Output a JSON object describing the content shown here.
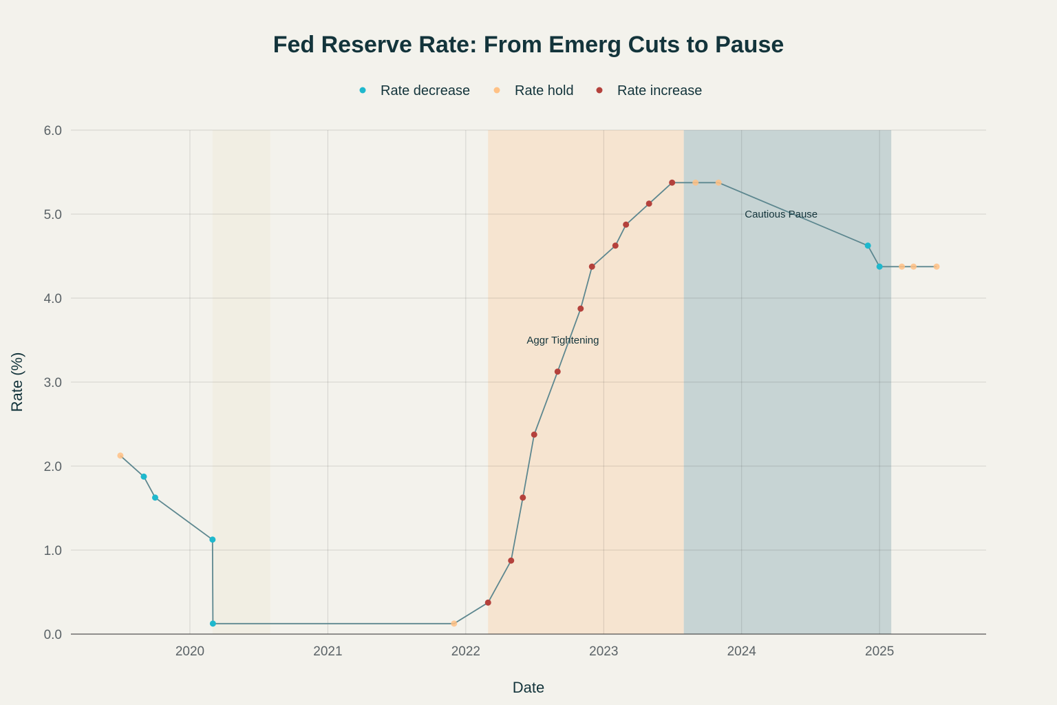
{
  "chart_data": {
    "type": "line",
    "title": "Fed Reserve Rate: From Emerg Cuts to Pause",
    "xlabel": "Date",
    "ylabel": "Rate (%)",
    "xlim": [
      "2019-02-20",
      "2025-10-10"
    ],
    "ylim": [
      0,
      6
    ],
    "x_ticks": [
      "2020",
      "2021",
      "2022",
      "2023",
      "2024",
      "2025"
    ],
    "y_ticks": [
      "0.0",
      "1.0",
      "2.0",
      "3.0",
      "4.0",
      "5.0",
      "6.0"
    ],
    "grid": true,
    "legend_position": "top-center",
    "legend": [
      {
        "name": "Rate decrease",
        "color": "#1FB8CD"
      },
      {
        "name": "Rate hold",
        "color": "#FFC185"
      },
      {
        "name": "Rate increase",
        "color": "#B4413C"
      }
    ],
    "line_color": "#5D878F",
    "points": [
      {
        "date": "2019-07-01",
        "rate": 2.125,
        "type": "Rate hold"
      },
      {
        "date": "2019-09-01",
        "rate": 1.875,
        "type": "Rate decrease"
      },
      {
        "date": "2019-10-01",
        "rate": 1.625,
        "type": "Rate decrease"
      },
      {
        "date": "2020-03-01",
        "rate": 1.125,
        "type": "Rate decrease"
      },
      {
        "date": "2020-03-02",
        "rate": 0.125,
        "type": "Rate decrease"
      },
      {
        "date": "2021-12-01",
        "rate": 0.125,
        "type": "Rate hold"
      },
      {
        "date": "2022-03-01",
        "rate": 0.375,
        "type": "Rate increase"
      },
      {
        "date": "2022-05-01",
        "rate": 0.875,
        "type": "Rate increase"
      },
      {
        "date": "2022-06-01",
        "rate": 1.625,
        "type": "Rate increase"
      },
      {
        "date": "2022-07-01",
        "rate": 2.375,
        "type": "Rate increase"
      },
      {
        "date": "2022-09-01",
        "rate": 3.125,
        "type": "Rate increase"
      },
      {
        "date": "2022-11-01",
        "rate": 3.875,
        "type": "Rate increase"
      },
      {
        "date": "2022-12-01",
        "rate": 4.375,
        "type": "Rate increase"
      },
      {
        "date": "2023-02-01",
        "rate": 4.625,
        "type": "Rate increase"
      },
      {
        "date": "2023-03-01",
        "rate": 4.875,
        "type": "Rate increase"
      },
      {
        "date": "2023-05-01",
        "rate": 5.125,
        "type": "Rate increase"
      },
      {
        "date": "2023-07-01",
        "rate": 5.375,
        "type": "Rate increase"
      },
      {
        "date": "2023-09-01",
        "rate": 5.375,
        "type": "Rate hold"
      },
      {
        "date": "2023-11-01",
        "rate": 5.375,
        "type": "Rate hold"
      },
      {
        "date": "2024-12-01",
        "rate": 4.625,
        "type": "Rate decrease"
      },
      {
        "date": "2025-01-01",
        "rate": 4.375,
        "type": "Rate decrease"
      },
      {
        "date": "2025-03-01",
        "rate": 4.375,
        "type": "Rate hold"
      },
      {
        "date": "2025-04-01",
        "rate": 4.375,
        "type": "Rate hold"
      },
      {
        "date": "2025-06-01",
        "rate": 4.375,
        "type": "Rate hold"
      }
    ],
    "regions": [
      {
        "start": "2020-03-01",
        "end": "2020-08-01",
        "color": "#F1EEE3"
      },
      {
        "start": "2022-03-01",
        "end": "2023-08-01",
        "color": "#F6E4D0"
      },
      {
        "start": "2023-08-01",
        "end": "2025-02-01",
        "color": "#C7D4D4"
      }
    ],
    "annotations": [
      {
        "text": "Aggr Tightening",
        "date": "2022-09-15",
        "rate": 3.5
      },
      {
        "text": "Cautious Pause",
        "date": "2024-04-15",
        "rate": 5.0
      }
    ]
  }
}
